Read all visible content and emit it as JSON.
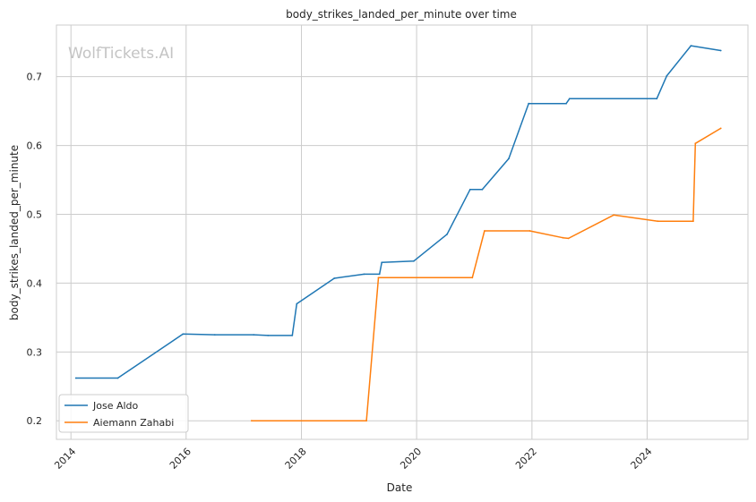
{
  "chart_data": {
    "type": "line",
    "title": "body_strikes_landed_per_minute over time",
    "xlabel": "Date",
    "ylabel": "body_strikes_landed_per_minute",
    "watermark": "WolfTickets.AI",
    "x_ticks": [
      "2014",
      "2016",
      "2018",
      "2020",
      "2022",
      "2024"
    ],
    "y_ticks": [
      "0.2",
      "0.3",
      "0.4",
      "0.5",
      "0.6",
      "0.7"
    ],
    "xlim": [
      "2013-10-01",
      "2025-10-01"
    ],
    "ylim": [
      0.173,
      0.775
    ],
    "grid": true,
    "legend_position": "lower-left",
    "series": [
      {
        "name": "Jose Aldo",
        "color": "#1f77b4",
        "points": [
          [
            "2014-02-01",
            0.262
          ],
          [
            "2014-10-25",
            0.262
          ],
          [
            "2015-12-12",
            0.326
          ],
          [
            "2016-07-01",
            0.325
          ],
          [
            "2017-03-04",
            0.325
          ],
          [
            "2017-06-03",
            0.324
          ],
          [
            "2017-11-04",
            0.324
          ],
          [
            "2017-12-02",
            0.37
          ],
          [
            "2018-07-28",
            0.407
          ],
          [
            "2019-02-02",
            0.413
          ],
          [
            "2019-05-11",
            0.413
          ],
          [
            "2019-05-25",
            0.43
          ],
          [
            "2019-12-14",
            0.432
          ],
          [
            "2020-07-12",
            0.471
          ],
          [
            "2020-12-05",
            0.536
          ],
          [
            "2021-02-20",
            0.536
          ],
          [
            "2021-08-07",
            0.581
          ],
          [
            "2021-12-11",
            0.661
          ],
          [
            "2022-08-06",
            0.661
          ],
          [
            "2022-08-27",
            0.668
          ],
          [
            "2024-03-02",
            0.668
          ],
          [
            "2024-05-04",
            0.701
          ],
          [
            "2024-10-05",
            0.745
          ],
          [
            "2025-04-12",
            0.738
          ]
        ]
      },
      {
        "name": "Aiemann Zahabi",
        "color": "#ff7f0e",
        "points": [
          [
            "2017-02-19",
            0.2
          ],
          [
            "2019-02-17",
            0.2
          ],
          [
            "2019-05-04",
            0.408
          ],
          [
            "2020-12-19",
            0.408
          ],
          [
            "2021-03-06",
            0.476
          ],
          [
            "2021-12-18",
            0.476
          ],
          [
            "2022-07-16",
            0.466
          ],
          [
            "2022-08-20",
            0.465
          ],
          [
            "2023-06-03",
            0.499
          ],
          [
            "2024-03-09",
            0.49
          ],
          [
            "2024-10-19",
            0.49
          ],
          [
            "2024-11-02",
            0.603
          ],
          [
            "2025-04-12",
            0.625
          ]
        ]
      }
    ]
  }
}
